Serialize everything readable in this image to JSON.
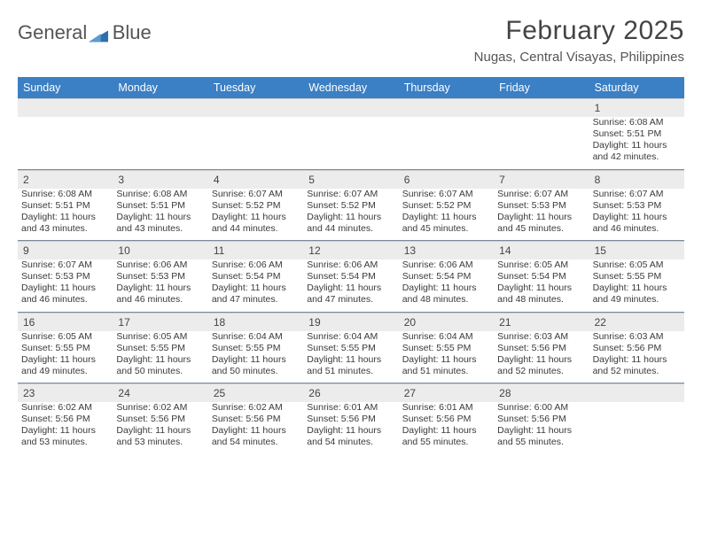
{
  "brand": {
    "part1": "General",
    "part2": "Blue",
    "triangle_color": "#2f6fb0"
  },
  "title": {
    "month": "February 2025",
    "location": "Nugas, Central Visayas, Philippines"
  },
  "colors": {
    "header_bg": "#3b7fc4",
    "header_text": "#ffffff",
    "daynum_bg": "#ececec",
    "divider": "#7a8a99",
    "text": "#3a3a3a",
    "title_text": "#444444"
  },
  "weekdays": [
    "Sunday",
    "Monday",
    "Tuesday",
    "Wednesday",
    "Thursday",
    "Friday",
    "Saturday"
  ],
  "weeks": [
    {
      "days": [
        null,
        null,
        null,
        null,
        null,
        null,
        {
          "n": "1",
          "sunrise": "Sunrise: 6:08 AM",
          "sunset": "Sunset: 5:51 PM",
          "daylight1": "Daylight: 11 hours",
          "daylight2": "and 42 minutes."
        }
      ]
    },
    {
      "days": [
        {
          "n": "2",
          "sunrise": "Sunrise: 6:08 AM",
          "sunset": "Sunset: 5:51 PM",
          "daylight1": "Daylight: 11 hours",
          "daylight2": "and 43 minutes."
        },
        {
          "n": "3",
          "sunrise": "Sunrise: 6:08 AM",
          "sunset": "Sunset: 5:51 PM",
          "daylight1": "Daylight: 11 hours",
          "daylight2": "and 43 minutes."
        },
        {
          "n": "4",
          "sunrise": "Sunrise: 6:07 AM",
          "sunset": "Sunset: 5:52 PM",
          "daylight1": "Daylight: 11 hours",
          "daylight2": "and 44 minutes."
        },
        {
          "n": "5",
          "sunrise": "Sunrise: 6:07 AM",
          "sunset": "Sunset: 5:52 PM",
          "daylight1": "Daylight: 11 hours",
          "daylight2": "and 44 minutes."
        },
        {
          "n": "6",
          "sunrise": "Sunrise: 6:07 AM",
          "sunset": "Sunset: 5:52 PM",
          "daylight1": "Daylight: 11 hours",
          "daylight2": "and 45 minutes."
        },
        {
          "n": "7",
          "sunrise": "Sunrise: 6:07 AM",
          "sunset": "Sunset: 5:53 PM",
          "daylight1": "Daylight: 11 hours",
          "daylight2": "and 45 minutes."
        },
        {
          "n": "8",
          "sunrise": "Sunrise: 6:07 AM",
          "sunset": "Sunset: 5:53 PM",
          "daylight1": "Daylight: 11 hours",
          "daylight2": "and 46 minutes."
        }
      ]
    },
    {
      "days": [
        {
          "n": "9",
          "sunrise": "Sunrise: 6:07 AM",
          "sunset": "Sunset: 5:53 PM",
          "daylight1": "Daylight: 11 hours",
          "daylight2": "and 46 minutes."
        },
        {
          "n": "10",
          "sunrise": "Sunrise: 6:06 AM",
          "sunset": "Sunset: 5:53 PM",
          "daylight1": "Daylight: 11 hours",
          "daylight2": "and 46 minutes."
        },
        {
          "n": "11",
          "sunrise": "Sunrise: 6:06 AM",
          "sunset": "Sunset: 5:54 PM",
          "daylight1": "Daylight: 11 hours",
          "daylight2": "and 47 minutes."
        },
        {
          "n": "12",
          "sunrise": "Sunrise: 6:06 AM",
          "sunset": "Sunset: 5:54 PM",
          "daylight1": "Daylight: 11 hours",
          "daylight2": "and 47 minutes."
        },
        {
          "n": "13",
          "sunrise": "Sunrise: 6:06 AM",
          "sunset": "Sunset: 5:54 PM",
          "daylight1": "Daylight: 11 hours",
          "daylight2": "and 48 minutes."
        },
        {
          "n": "14",
          "sunrise": "Sunrise: 6:05 AM",
          "sunset": "Sunset: 5:54 PM",
          "daylight1": "Daylight: 11 hours",
          "daylight2": "and 48 minutes."
        },
        {
          "n": "15",
          "sunrise": "Sunrise: 6:05 AM",
          "sunset": "Sunset: 5:55 PM",
          "daylight1": "Daylight: 11 hours",
          "daylight2": "and 49 minutes."
        }
      ]
    },
    {
      "days": [
        {
          "n": "16",
          "sunrise": "Sunrise: 6:05 AM",
          "sunset": "Sunset: 5:55 PM",
          "daylight1": "Daylight: 11 hours",
          "daylight2": "and 49 minutes."
        },
        {
          "n": "17",
          "sunrise": "Sunrise: 6:05 AM",
          "sunset": "Sunset: 5:55 PM",
          "daylight1": "Daylight: 11 hours",
          "daylight2": "and 50 minutes."
        },
        {
          "n": "18",
          "sunrise": "Sunrise: 6:04 AM",
          "sunset": "Sunset: 5:55 PM",
          "daylight1": "Daylight: 11 hours",
          "daylight2": "and 50 minutes."
        },
        {
          "n": "19",
          "sunrise": "Sunrise: 6:04 AM",
          "sunset": "Sunset: 5:55 PM",
          "daylight1": "Daylight: 11 hours",
          "daylight2": "and 51 minutes."
        },
        {
          "n": "20",
          "sunrise": "Sunrise: 6:04 AM",
          "sunset": "Sunset: 5:55 PM",
          "daylight1": "Daylight: 11 hours",
          "daylight2": "and 51 minutes."
        },
        {
          "n": "21",
          "sunrise": "Sunrise: 6:03 AM",
          "sunset": "Sunset: 5:56 PM",
          "daylight1": "Daylight: 11 hours",
          "daylight2": "and 52 minutes."
        },
        {
          "n": "22",
          "sunrise": "Sunrise: 6:03 AM",
          "sunset": "Sunset: 5:56 PM",
          "daylight1": "Daylight: 11 hours",
          "daylight2": "and 52 minutes."
        }
      ]
    },
    {
      "days": [
        {
          "n": "23",
          "sunrise": "Sunrise: 6:02 AM",
          "sunset": "Sunset: 5:56 PM",
          "daylight1": "Daylight: 11 hours",
          "daylight2": "and 53 minutes."
        },
        {
          "n": "24",
          "sunrise": "Sunrise: 6:02 AM",
          "sunset": "Sunset: 5:56 PM",
          "daylight1": "Daylight: 11 hours",
          "daylight2": "and 53 minutes."
        },
        {
          "n": "25",
          "sunrise": "Sunrise: 6:02 AM",
          "sunset": "Sunset: 5:56 PM",
          "daylight1": "Daylight: 11 hours",
          "daylight2": "and 54 minutes."
        },
        {
          "n": "26",
          "sunrise": "Sunrise: 6:01 AM",
          "sunset": "Sunset: 5:56 PM",
          "daylight1": "Daylight: 11 hours",
          "daylight2": "and 54 minutes."
        },
        {
          "n": "27",
          "sunrise": "Sunrise: 6:01 AM",
          "sunset": "Sunset: 5:56 PM",
          "daylight1": "Daylight: 11 hours",
          "daylight2": "and 55 minutes."
        },
        {
          "n": "28",
          "sunrise": "Sunrise: 6:00 AM",
          "sunset": "Sunset: 5:56 PM",
          "daylight1": "Daylight: 11 hours",
          "daylight2": "and 55 minutes."
        },
        null
      ]
    }
  ]
}
